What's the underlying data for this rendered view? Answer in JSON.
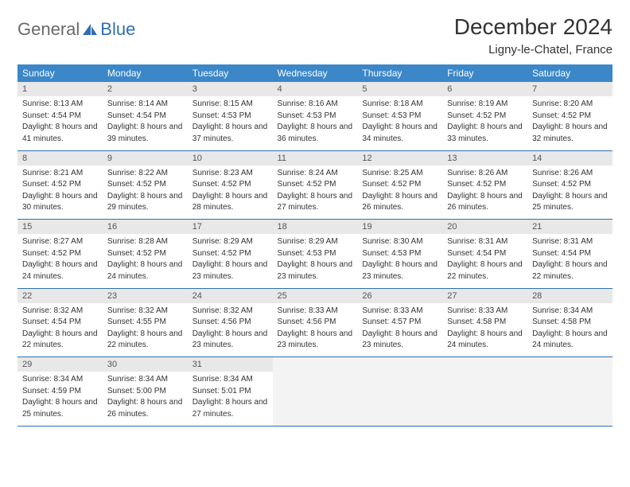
{
  "logo": {
    "text1": "General",
    "text2": "Blue"
  },
  "title": "December 2024",
  "location": "Ligny-le-Chatel, France",
  "colors": {
    "header_bg": "#3b87c8",
    "header_fg": "#ffffff",
    "daynum_bg": "#e8e8e8",
    "border": "#2f6fb0",
    "logo_gray": "#6a6a6a",
    "logo_blue": "#2f6fb0"
  },
  "weekdays": [
    "Sunday",
    "Monday",
    "Tuesday",
    "Wednesday",
    "Thursday",
    "Friday",
    "Saturday"
  ],
  "weeks": [
    [
      {
        "d": "1",
        "sr": "8:13 AM",
        "ss": "4:54 PM",
        "dl": "8 hours and 41 minutes."
      },
      {
        "d": "2",
        "sr": "8:14 AM",
        "ss": "4:54 PM",
        "dl": "8 hours and 39 minutes."
      },
      {
        "d": "3",
        "sr": "8:15 AM",
        "ss": "4:53 PM",
        "dl": "8 hours and 37 minutes."
      },
      {
        "d": "4",
        "sr": "8:16 AM",
        "ss": "4:53 PM",
        "dl": "8 hours and 36 minutes."
      },
      {
        "d": "5",
        "sr": "8:18 AM",
        "ss": "4:53 PM",
        "dl": "8 hours and 34 minutes."
      },
      {
        "d": "6",
        "sr": "8:19 AM",
        "ss": "4:52 PM",
        "dl": "8 hours and 33 minutes."
      },
      {
        "d": "7",
        "sr": "8:20 AM",
        "ss": "4:52 PM",
        "dl": "8 hours and 32 minutes."
      }
    ],
    [
      {
        "d": "8",
        "sr": "8:21 AM",
        "ss": "4:52 PM",
        "dl": "8 hours and 30 minutes."
      },
      {
        "d": "9",
        "sr": "8:22 AM",
        "ss": "4:52 PM",
        "dl": "8 hours and 29 minutes."
      },
      {
        "d": "10",
        "sr": "8:23 AM",
        "ss": "4:52 PM",
        "dl": "8 hours and 28 minutes."
      },
      {
        "d": "11",
        "sr": "8:24 AM",
        "ss": "4:52 PM",
        "dl": "8 hours and 27 minutes."
      },
      {
        "d": "12",
        "sr": "8:25 AM",
        "ss": "4:52 PM",
        "dl": "8 hours and 26 minutes."
      },
      {
        "d": "13",
        "sr": "8:26 AM",
        "ss": "4:52 PM",
        "dl": "8 hours and 26 minutes."
      },
      {
        "d": "14",
        "sr": "8:26 AM",
        "ss": "4:52 PM",
        "dl": "8 hours and 25 minutes."
      }
    ],
    [
      {
        "d": "15",
        "sr": "8:27 AM",
        "ss": "4:52 PM",
        "dl": "8 hours and 24 minutes."
      },
      {
        "d": "16",
        "sr": "8:28 AM",
        "ss": "4:52 PM",
        "dl": "8 hours and 24 minutes."
      },
      {
        "d": "17",
        "sr": "8:29 AM",
        "ss": "4:52 PM",
        "dl": "8 hours and 23 minutes."
      },
      {
        "d": "18",
        "sr": "8:29 AM",
        "ss": "4:53 PM",
        "dl": "8 hours and 23 minutes."
      },
      {
        "d": "19",
        "sr": "8:30 AM",
        "ss": "4:53 PM",
        "dl": "8 hours and 23 minutes."
      },
      {
        "d": "20",
        "sr": "8:31 AM",
        "ss": "4:54 PM",
        "dl": "8 hours and 22 minutes."
      },
      {
        "d": "21",
        "sr": "8:31 AM",
        "ss": "4:54 PM",
        "dl": "8 hours and 22 minutes."
      }
    ],
    [
      {
        "d": "22",
        "sr": "8:32 AM",
        "ss": "4:54 PM",
        "dl": "8 hours and 22 minutes."
      },
      {
        "d": "23",
        "sr": "8:32 AM",
        "ss": "4:55 PM",
        "dl": "8 hours and 22 minutes."
      },
      {
        "d": "24",
        "sr": "8:32 AM",
        "ss": "4:56 PM",
        "dl": "8 hours and 23 minutes."
      },
      {
        "d": "25",
        "sr": "8:33 AM",
        "ss": "4:56 PM",
        "dl": "8 hours and 23 minutes."
      },
      {
        "d": "26",
        "sr": "8:33 AM",
        "ss": "4:57 PM",
        "dl": "8 hours and 23 minutes."
      },
      {
        "d": "27",
        "sr": "8:33 AM",
        "ss": "4:58 PM",
        "dl": "8 hours and 24 minutes."
      },
      {
        "d": "28",
        "sr": "8:34 AM",
        "ss": "4:58 PM",
        "dl": "8 hours and 24 minutes."
      }
    ],
    [
      {
        "d": "29",
        "sr": "8:34 AM",
        "ss": "4:59 PM",
        "dl": "8 hours and 25 minutes."
      },
      {
        "d": "30",
        "sr": "8:34 AM",
        "ss": "5:00 PM",
        "dl": "8 hours and 26 minutes."
      },
      {
        "d": "31",
        "sr": "8:34 AM",
        "ss": "5:01 PM",
        "dl": "8 hours and 27 minutes."
      },
      null,
      null,
      null,
      null
    ]
  ],
  "labels": {
    "sunrise": "Sunrise:",
    "sunset": "Sunset:",
    "daylight": "Daylight:"
  }
}
